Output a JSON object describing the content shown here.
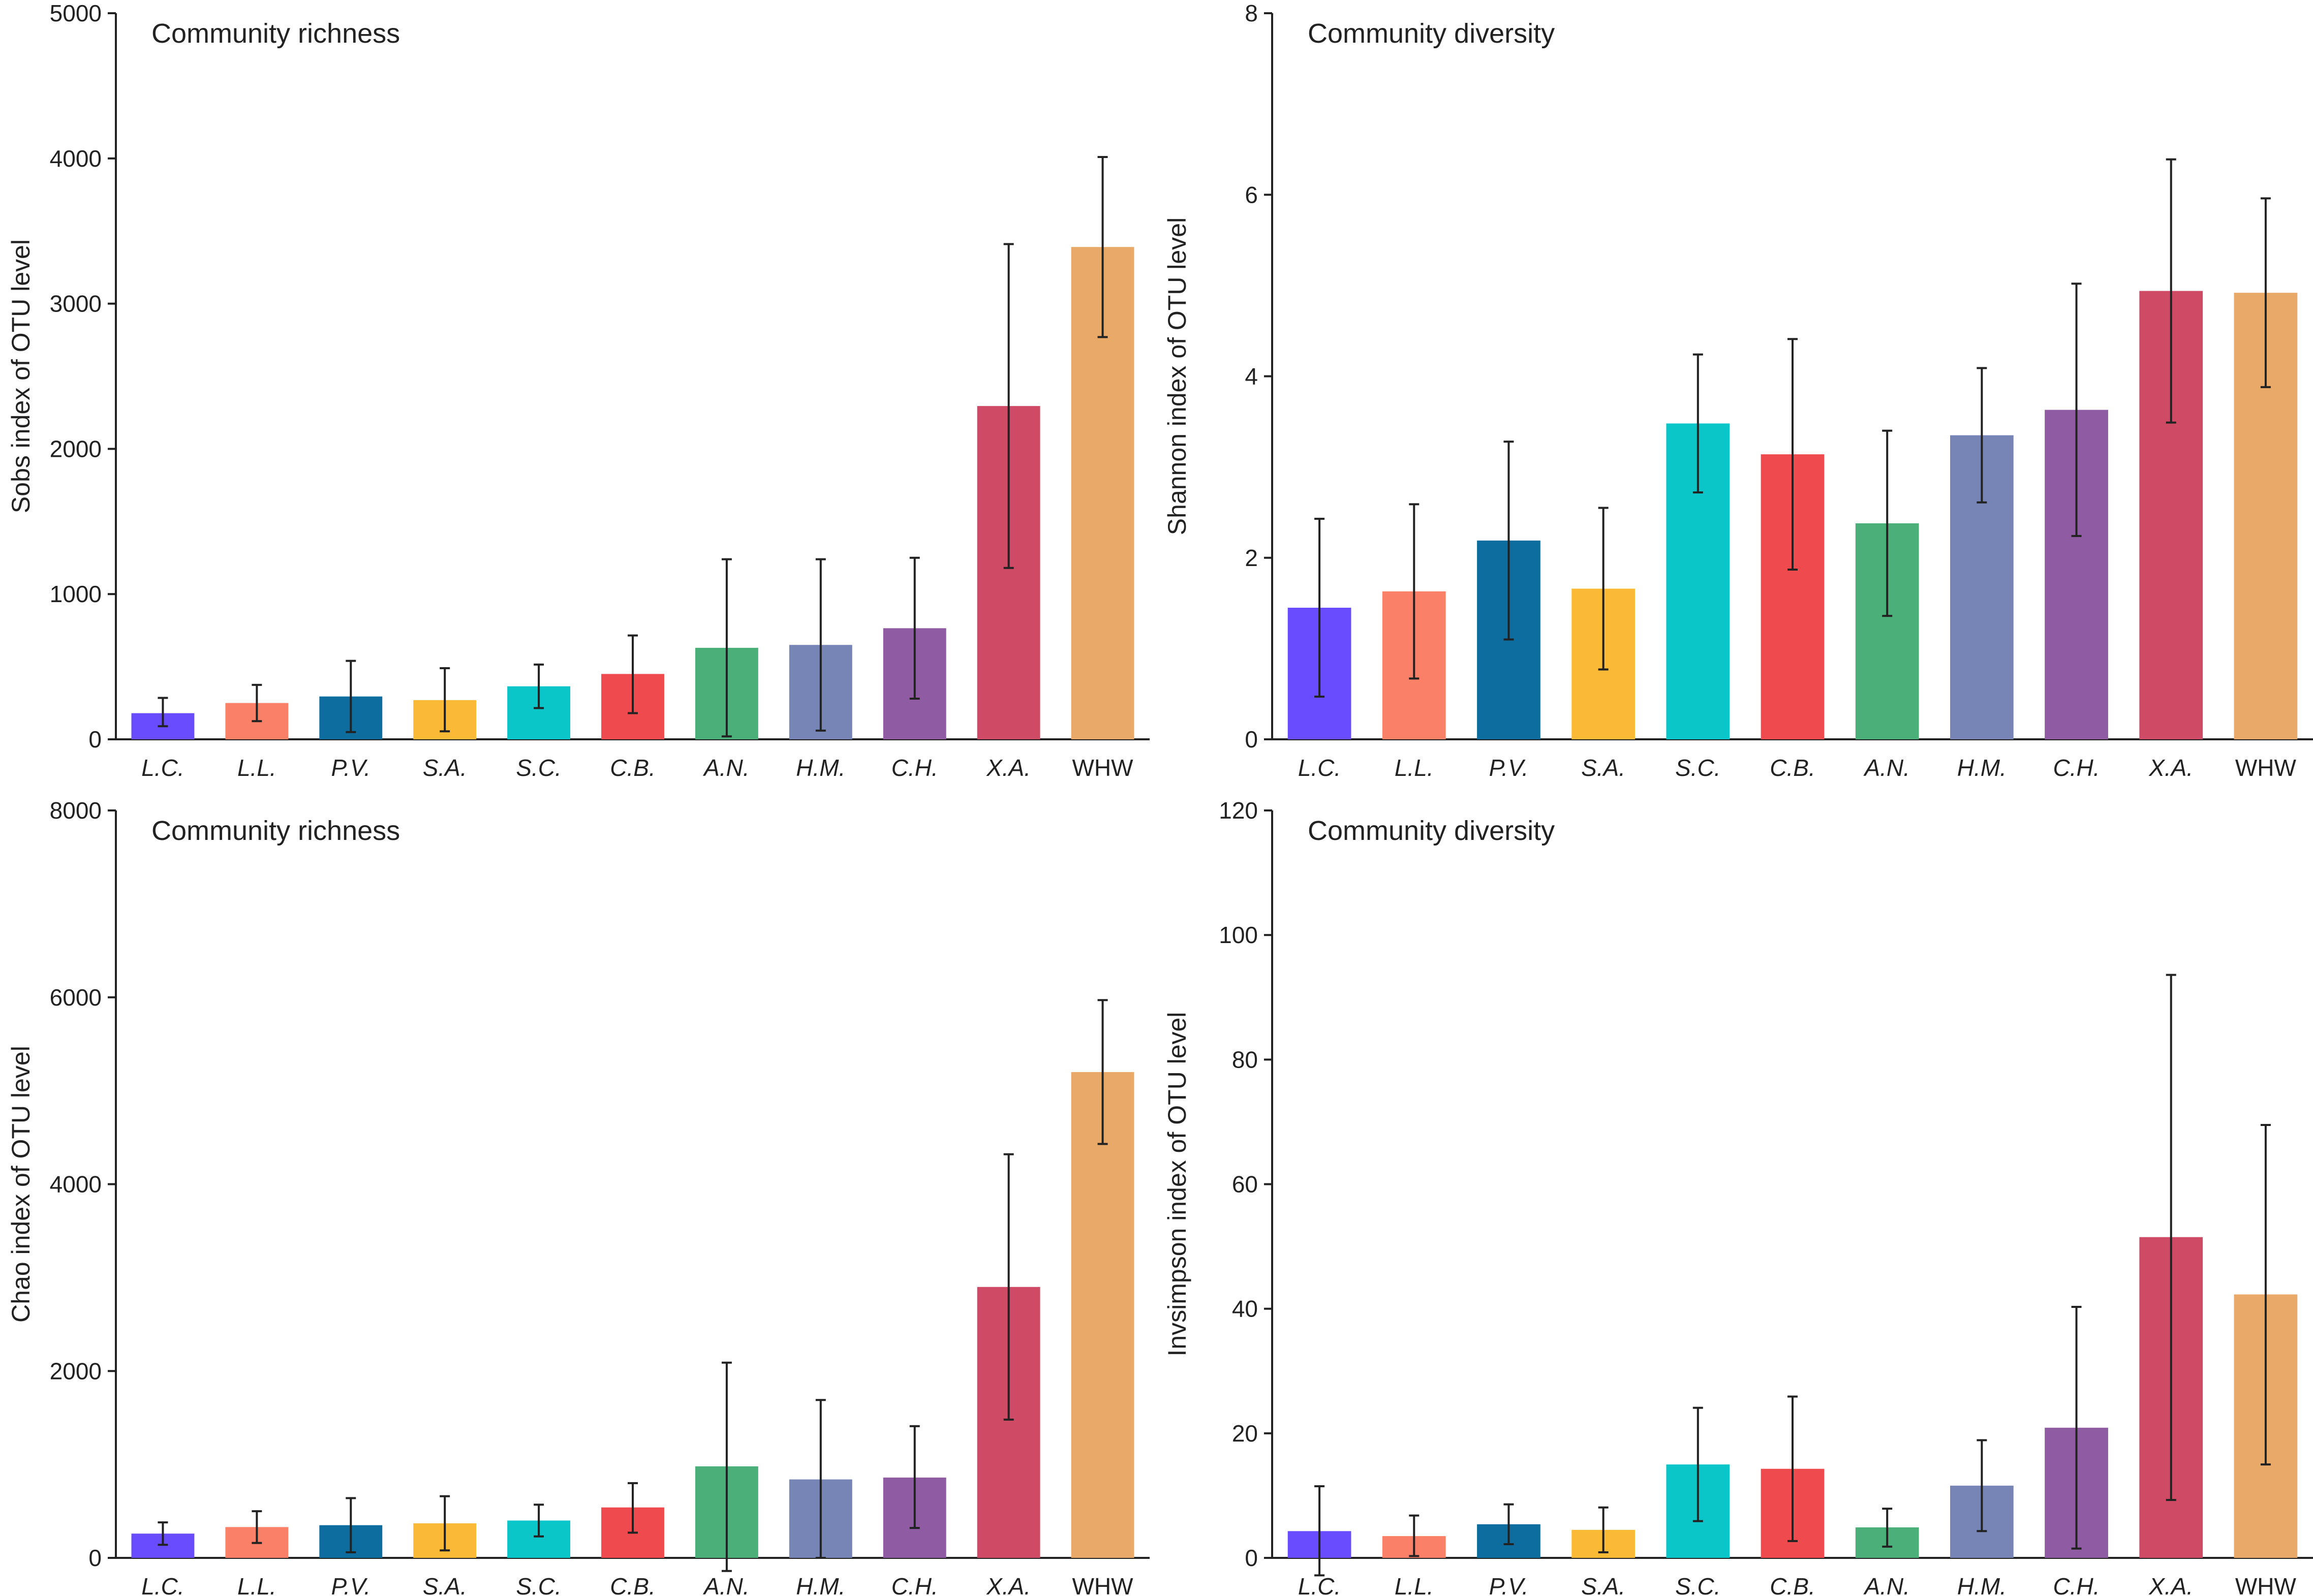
{
  "chart_data": [
    {
      "type": "bar",
      "title": "Community richness",
      "xlabel": "",
      "ylabel": "Sobs index of OTU level",
      "ylim": [
        0,
        5000
      ],
      "yticks": [
        0,
        1000,
        2000,
        3000,
        4000,
        5000
      ],
      "categories": [
        "L.C.",
        "L.L.",
        "P.V.",
        "S.A.",
        "S.C.",
        "C.B.",
        "A.N.",
        "H.M.",
        "C.H.",
        "X.A.",
        "WHW"
      ],
      "values": [
        180,
        250,
        295,
        270,
        365,
        450,
        630,
        650,
        765,
        2295,
        3390
      ],
      "error_low": [
        90,
        125,
        50,
        55,
        215,
        180,
        20,
        60,
        280,
        1180,
        2770
      ],
      "error_high": [
        285,
        375,
        540,
        490,
        515,
        715,
        1240,
        1240,
        1250,
        3410,
        4010
      ]
    },
    {
      "type": "bar",
      "title": "Community diversity",
      "xlabel": "",
      "ylabel": "Shannon index of OTU level",
      "ylim": [
        0,
        8
      ],
      "yticks": [
        0,
        2,
        4,
        6,
        8
      ],
      "categories": [
        "L.C.",
        "L.L.",
        "P.V.",
        "S.A.",
        "S.C.",
        "C.B.",
        "A.N.",
        "H.M.",
        "C.H.",
        "X.A.",
        "WHW"
      ],
      "values": [
        1.45,
        1.63,
        2.19,
        1.66,
        3.48,
        3.14,
        2.38,
        3.35,
        3.63,
        4.94,
        4.92
      ],
      "error_low": [
        0.47,
        0.67,
        1.1,
        0.77,
        2.72,
        1.87,
        1.36,
        2.61,
        2.24,
        3.49,
        3.88
      ],
      "error_high": [
        2.43,
        2.59,
        3.28,
        2.55,
        4.24,
        4.41,
        3.4,
        4.09,
        5.02,
        6.39,
        5.96
      ]
    },
    {
      "type": "bar",
      "title": "Community richness",
      "xlabel": "",
      "ylabel": "Chao index of OTU level",
      "ylim": [
        0,
        8000
      ],
      "yticks": [
        0,
        2000,
        4000,
        6000,
        8000
      ],
      "categories": [
        "L.C.",
        "L.L.",
        "P.V.",
        "S.A.",
        "S.C.",
        "C.B.",
        "A.N.",
        "H.M.",
        "C.H.",
        "X.A.",
        "WHW"
      ],
      "values": [
        260,
        330,
        350,
        370,
        400,
        540,
        980,
        840,
        860,
        2900,
        5200
      ],
      "error_low": [
        140,
        160,
        60,
        80,
        230,
        270,
        -140,
        0,
        320,
        1480,
        4430
      ],
      "error_high": [
        380,
        500,
        640,
        660,
        570,
        800,
        2090,
        1690,
        1410,
        4320,
        5970
      ]
    },
    {
      "type": "bar",
      "title": "Community diversity",
      "xlabel": "",
      "ylabel": "Invsimpson index of OTU level",
      "ylim": [
        0,
        120
      ],
      "yticks": [
        0,
        20,
        40,
        60,
        80,
        100,
        120
      ],
      "categories": [
        "L.C.",
        "L.L.",
        "P.V.",
        "S.A.",
        "S.C.",
        "C.B.",
        "A.N.",
        "H.M.",
        "C.H.",
        "X.A.",
        "WHW"
      ],
      "values": [
        4.3,
        3.5,
        5.4,
        4.5,
        15.0,
        14.3,
        4.9,
        11.6,
        20.9,
        51.5,
        42.3
      ],
      "error_low": [
        -2.8,
        0.3,
        2.2,
        0.9,
        5.9,
        2.7,
        1.8,
        4.3,
        1.5,
        9.3,
        15.0
      ],
      "error_high": [
        11.5,
        6.8,
        8.6,
        8.1,
        24.1,
        25.9,
        7.9,
        18.9,
        40.3,
        93.6,
        69.5
      ]
    }
  ],
  "colors": [
    "#6a4cff",
    "#fa8068",
    "#0d6d9f",
    "#fbba35",
    "#0bc6c8",
    "#ef4a4e",
    "#4baf79",
    "#7684b6",
    "#8f5ba3",
    "#cf4a65",
    "#e9a968"
  ],
  "axis_color": "#222222",
  "upright_categories": [
    "WHW"
  ]
}
